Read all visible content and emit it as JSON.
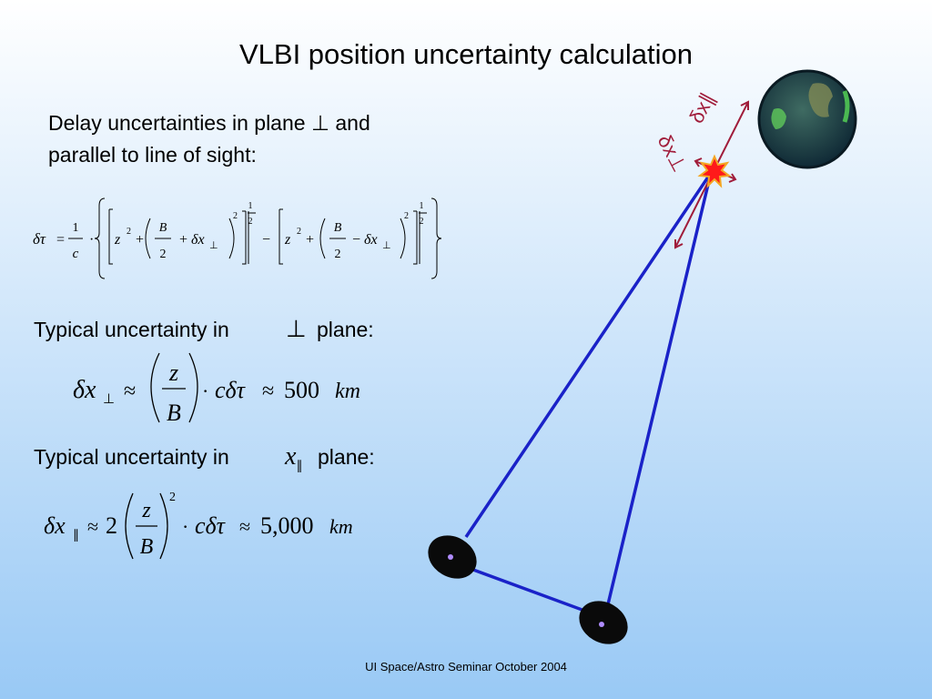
{
  "title": "VLBI position uncertainty calculation",
  "intro": [
    "Delay uncertainties in plane ⊥ and",
    "parallel to line of sight:"
  ],
  "formula_1": [
    "δτ",
    "=",
    "1",
    "c",
    "·",
    "z",
    "2",
    "+",
    "B",
    "2",
    "+",
    "δx",
    "⊥",
    "2",
    "1",
    "2",
    "−",
    "z",
    "2",
    "+",
    "B",
    "2",
    "−",
    "δx",
    "⊥",
    "2",
    "1",
    "2"
  ],
  "section_perp": {
    "label": "Typical uncertainty in",
    "symbol": "⊥",
    "suffix": "plane:"
  },
  "formula_2": [
    "δx",
    "⊥",
    "≈",
    "z",
    "B",
    "·",
    "cδτ",
    "≈",
    "500",
    "km"
  ],
  "section_par": {
    "label": "Typical uncertainty in",
    "symbol": "x",
    "subscript": "∥",
    "suffix": "plane:"
  },
  "formula_3": [
    "δx",
    "∥",
    "≈",
    "2",
    "z",
    "B",
    "2",
    "·",
    "cδτ",
    "≈",
    "5,000",
    "km"
  ],
  "diagram_labels": {
    "parallel": "δx∥",
    "perpendicular": "δx⊥"
  },
  "footer": "UI Space/Astro Seminar October 2004"
}
